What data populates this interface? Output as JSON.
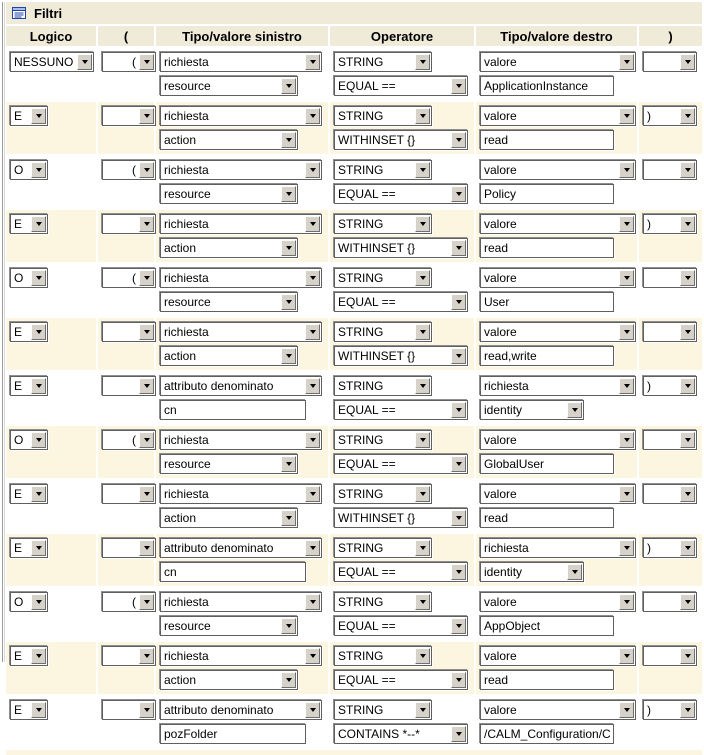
{
  "title": {
    "text": "Filtri"
  },
  "colors": {
    "panel_bg": "#f0ead9",
    "stripe_bg": "#fcf5e0",
    "button_face": "#d6d2c9",
    "icon_blue": "#2244aa"
  },
  "table": {
    "headers": [
      "Logico",
      "(",
      "Tipo/valore sinistro",
      "Operatore",
      "Tipo/valore destro",
      ")"
    ],
    "rows": [
      {
        "logico": "NESSUNO",
        "open": "(",
        "left_type": "richiesta",
        "left_value_kind": "select",
        "left_value": "resource",
        "op_type": "STRING",
        "operator": "EQUAL ==",
        "right_type": "valore",
        "right_value_kind": "input",
        "right_value": "ApplicationInstance",
        "close": ""
      },
      {
        "logico": "E",
        "open": "",
        "left_type": "richiesta",
        "left_value_kind": "select",
        "left_value": "action",
        "op_type": "STRING",
        "operator": "WITHINSET {}",
        "right_type": "valore",
        "right_value_kind": "input",
        "right_value": "read",
        "close": ")"
      },
      {
        "logico": "O",
        "open": "(",
        "left_type": "richiesta",
        "left_value_kind": "select",
        "left_value": "resource",
        "op_type": "STRING",
        "operator": "EQUAL ==",
        "right_type": "valore",
        "right_value_kind": "input",
        "right_value": "Policy",
        "close": ""
      },
      {
        "logico": "E",
        "open": "",
        "left_type": "richiesta",
        "left_value_kind": "select",
        "left_value": "action",
        "op_type": "STRING",
        "operator": "WITHINSET {}",
        "right_type": "valore",
        "right_value_kind": "input",
        "right_value": "read",
        "close": ")"
      },
      {
        "logico": "O",
        "open": "(",
        "left_type": "richiesta",
        "left_value_kind": "select",
        "left_value": "resource",
        "op_type": "STRING",
        "operator": "EQUAL ==",
        "right_type": "valore",
        "right_value_kind": "input",
        "right_value": "User",
        "close": ""
      },
      {
        "logico": "E",
        "open": "",
        "left_type": "richiesta",
        "left_value_kind": "select",
        "left_value": "action",
        "op_type": "STRING",
        "operator": "WITHINSET {}",
        "right_type": "valore",
        "right_value_kind": "input",
        "right_value": "read,write",
        "close": ""
      },
      {
        "logico": "E",
        "open": "",
        "left_type": "attributo denominato",
        "left_value_kind": "input",
        "left_value": "cn",
        "op_type": "STRING",
        "operator": "EQUAL ==",
        "right_type": "richiesta",
        "right_value_kind": "select",
        "right_value": "identity",
        "close": ")"
      },
      {
        "logico": "O",
        "open": "(",
        "left_type": "richiesta",
        "left_value_kind": "select",
        "left_value": "resource",
        "op_type": "STRING",
        "operator": "EQUAL ==",
        "right_type": "valore",
        "right_value_kind": "input",
        "right_value": "GlobalUser",
        "close": ""
      },
      {
        "logico": "E",
        "open": "",
        "left_type": "richiesta",
        "left_value_kind": "select",
        "left_value": "action",
        "op_type": "STRING",
        "operator": "WITHINSET {}",
        "right_type": "valore",
        "right_value_kind": "input",
        "right_value": "read",
        "close": ""
      },
      {
        "logico": "E",
        "open": "",
        "left_type": "attributo denominato",
        "left_value_kind": "input",
        "left_value": "cn",
        "op_type": "STRING",
        "operator": "EQUAL ==",
        "right_type": "richiesta",
        "right_value_kind": "select",
        "right_value": "identity",
        "close": ")"
      },
      {
        "logico": "O",
        "open": "(",
        "left_type": "richiesta",
        "left_value_kind": "select",
        "left_value": "resource",
        "op_type": "STRING",
        "operator": "EQUAL ==",
        "right_type": "valore",
        "right_value_kind": "input",
        "right_value": "AppObject",
        "close": ""
      },
      {
        "logico": "E",
        "open": "",
        "left_type": "richiesta",
        "left_value_kind": "select",
        "left_value": "action",
        "op_type": "STRING",
        "operator": "EQUAL ==",
        "right_type": "valore",
        "right_value_kind": "input",
        "right_value": "read",
        "close": ""
      },
      {
        "logico": "E",
        "open": "",
        "left_type": "attributo denominato",
        "left_value_kind": "input",
        "left_value": "pozFolder",
        "op_type": "STRING",
        "operator": "CONTAINS *--*",
        "right_type": "valore",
        "right_value_kind": "input",
        "right_value": "/CALM_Configuration/C",
        "close": ")"
      }
    ]
  }
}
